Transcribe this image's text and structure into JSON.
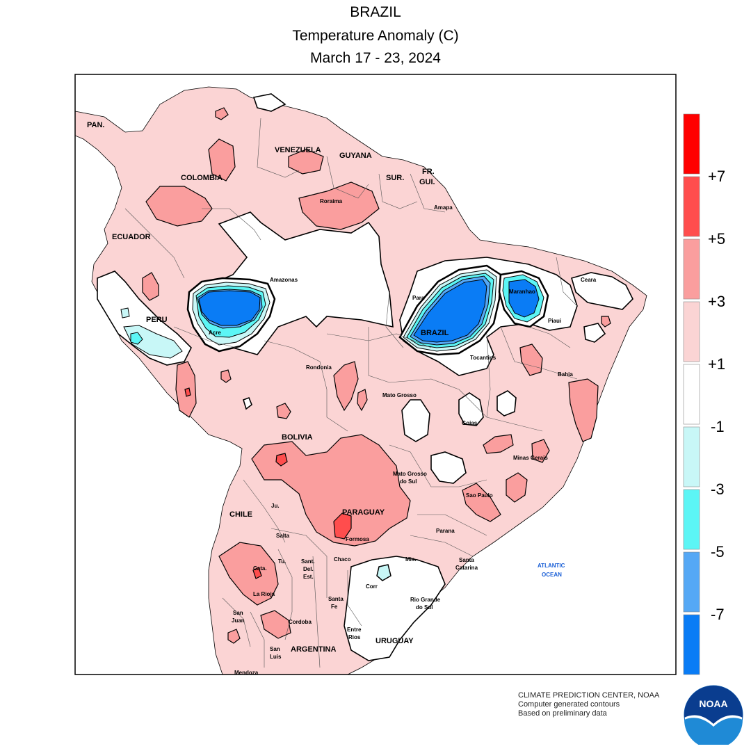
{
  "header": {
    "title": "BRAZIL",
    "subtitle": "Temperature Anomaly (C)",
    "period": "March 17 - 23, 2024"
  },
  "map": {
    "country_labels": [
      "PAN.",
      "VENEZUELA",
      "GUYANA",
      "SUR.",
      "FR.",
      "GUI.",
      "COLOMBIA",
      "ECUADOR",
      "PERU",
      "BRAZIL",
      "BOLIVIA",
      "PARAGUAY",
      "CHILE",
      "ARGENTINA",
      "URUGUAY"
    ],
    "state_labels": [
      "Roraima",
      "Amapa",
      "Amazonas",
      "Para",
      "Maranhao",
      "Ceara",
      "Piaui",
      "Acre",
      "Tocantins",
      "Bahia",
      "Rondonia",
      "Mato Grosso",
      "Goias",
      "Minas Gerais",
      "Mato Grosso",
      "do Sul",
      "Sao Paulo",
      "Parana",
      "Santa",
      "Catarina",
      "Rio Grande",
      "do Sul",
      "Ju.",
      "Salta",
      "Formosa",
      "Tu.",
      "Cata.",
      "Sant.",
      "Del.",
      "Est.",
      "Chaco",
      "Mis.",
      "Corr",
      "La Rioja",
      "San",
      "Juan",
      "Cordoba",
      "Santa",
      "Fe",
      "Entre",
      "Rios",
      "San",
      "Luis",
      "Mendoza"
    ],
    "ocean_label": [
      "ATLANTIC",
      "OCEAN"
    ]
  },
  "legend": {
    "colors": [
      "#ff0000",
      "#ff4d4d",
      "#fa9e9e",
      "#fbd4d4",
      "#ffffff",
      "#c8f7f7",
      "#5cf5f5",
      "#55a8f5",
      "#0a7cf5"
    ],
    "values": [
      "+7",
      "+5",
      "+3",
      "+1",
      "-1",
      "-3",
      "-5",
      "-7"
    ]
  },
  "credits": {
    "line1": "CLIMATE PREDICTION CENTER, NOAA",
    "line2": "Computer generated contours",
    "line3": "Based on preliminary data"
  },
  "logo": {
    "text": "NOAA"
  }
}
